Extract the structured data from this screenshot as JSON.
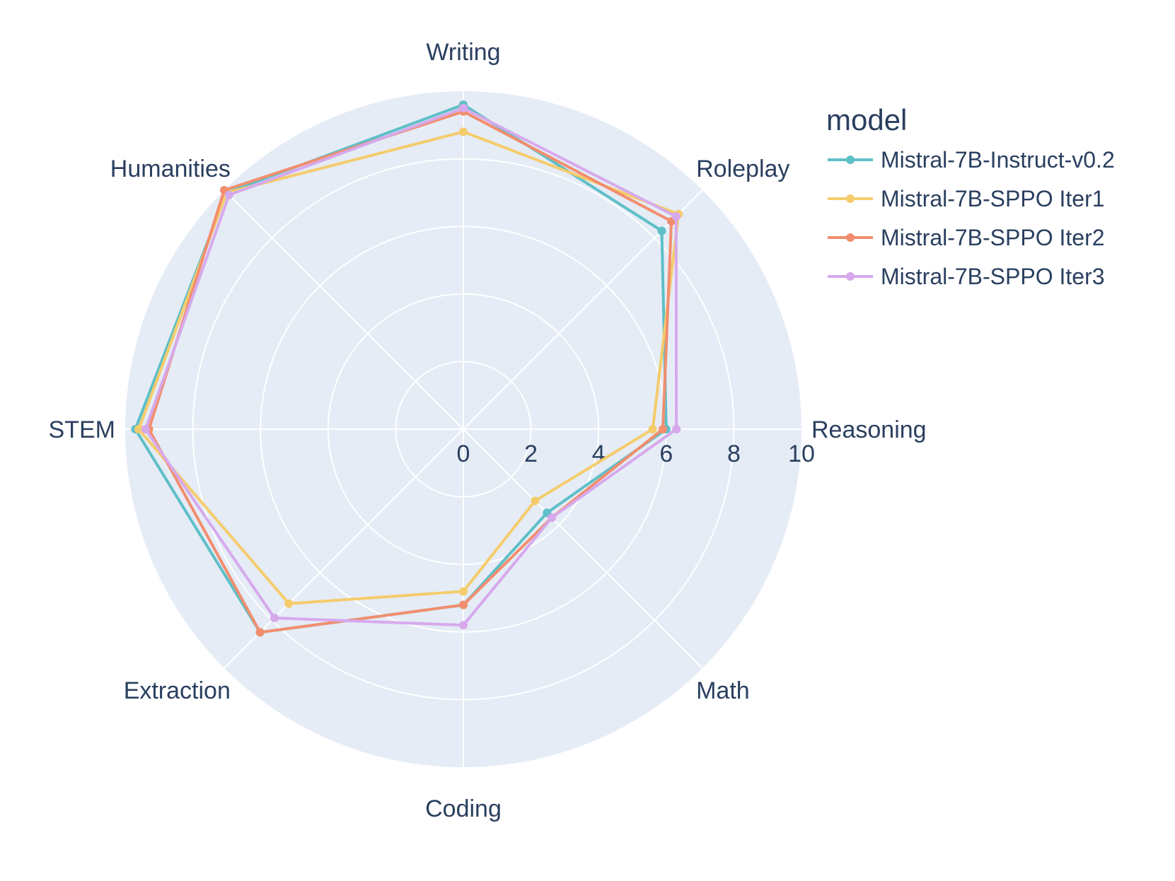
{
  "chart_data": {
    "type": "radar",
    "categories": [
      "Writing",
      "Roleplay",
      "Reasoning",
      "Math",
      "Coding",
      "Extraction",
      "STEM",
      "Humanities"
    ],
    "radial_range": [
      0,
      10
    ],
    "radial_ticks": [
      "0",
      "2",
      "4",
      "6",
      "8",
      "10"
    ],
    "grid": true,
    "legend": {
      "title": "model",
      "placement": "top-right"
    },
    "series": [
      {
        "name": "Mistral-7B-Instruct-v0.2",
        "color": "#5ebfc7",
        "values": [
          9.6,
          8.3,
          6.0,
          3.5,
          5.2,
          8.5,
          9.7,
          9.9
        ]
      },
      {
        "name": "Mistral-7B-SPPO Iter1",
        "color": "#f5cc6c",
        "values": [
          8.8,
          9.0,
          5.6,
          3.0,
          4.8,
          7.3,
          9.6,
          9.9
        ]
      },
      {
        "name": "Mistral-7B-SPPO Iter2",
        "color": "#f28e6e",
        "values": [
          9.4,
          8.7,
          5.9,
          3.7,
          5.2,
          8.5,
          9.3,
          10.0
        ]
      },
      {
        "name": "Mistral-7B-SPPO Iter3",
        "color": "#d6a9ec",
        "values": [
          9.5,
          8.9,
          6.3,
          3.7,
          5.8,
          7.9,
          9.4,
          9.8
        ]
      }
    ]
  }
}
